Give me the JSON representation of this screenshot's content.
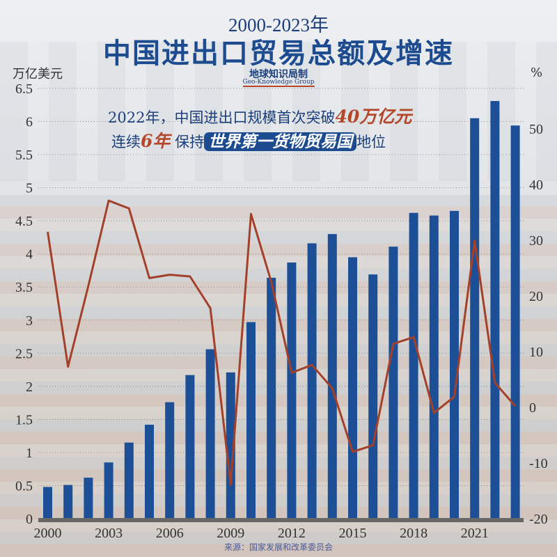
{
  "title_years": "2000-2023年",
  "title_main": "中国进出口贸易总额及增速",
  "brand_cn": "地球知识局制",
  "brand_en": "Geo-Knowledge Group",
  "annotation": {
    "line1_prefix": "2022年，中国进出口规模首次突破",
    "line1_highlight": "40万亿元",
    "line2_prefix": "连续",
    "line2_highlight": "6年",
    "line2_mid": "保持",
    "line2_box": "世界第一货物贸易国",
    "line2_suffix": "地位"
  },
  "source": "来源：国家发展和改革委员会",
  "colors": {
    "bars": "#1c4f96",
    "line": "#a3402a",
    "title": "#1c4b8f"
  },
  "chart_data": {
    "type": "bar+line",
    "categories": [
      "2000",
      "2001",
      "2002",
      "2003",
      "2004",
      "2005",
      "2006",
      "2007",
      "2008",
      "2009",
      "2010",
      "2011",
      "2012",
      "2013",
      "2014",
      "2015",
      "2016",
      "2017",
      "2018",
      "2019",
      "2020",
      "2021",
      "2022",
      "2023"
    ],
    "x_tick_labels": [
      "2000",
      "2003",
      "2006",
      "2009",
      "2012",
      "2015",
      "2018",
      "2021"
    ],
    "series": [
      {
        "type": "bar",
        "axis": "left",
        "values": [
          0.48,
          0.51,
          0.62,
          0.85,
          1.15,
          1.42,
          1.76,
          2.17,
          2.56,
          2.21,
          2.97,
          3.64,
          3.87,
          4.16,
          4.3,
          3.95,
          3.69,
          4.11,
          4.62,
          4.58,
          4.65,
          6.05,
          6.31,
          5.94
        ]
      },
      {
        "type": "line",
        "axis": "right",
        "values": [
          31.5,
          7.3,
          21.8,
          37.1,
          35.7,
          23.2,
          23.8,
          23.5,
          17.8,
          -13.9,
          34.7,
          22.5,
          6.2,
          7.6,
          3.4,
          -8.0,
          -6.8,
          11.4,
          12.6,
          -1.0,
          1.9,
          29.9,
          4.4,
          0.2
        ]
      }
    ],
    "left_axis": {
      "label": "万亿美元",
      "range": [
        0,
        6.5
      ],
      "ticks": [
        "0",
        "0.5",
        "1",
        "1.5",
        "2",
        "2.5",
        "3",
        "3.5",
        "4",
        "4.5",
        "5",
        "5.5",
        "6",
        "6.5"
      ]
    },
    "right_axis": {
      "label": "%",
      "range": [
        -20,
        55
      ],
      "ticks": [
        "-20",
        "-10",
        "0",
        "10",
        "20",
        "30",
        "40",
        "50"
      ]
    },
    "grid": true
  }
}
